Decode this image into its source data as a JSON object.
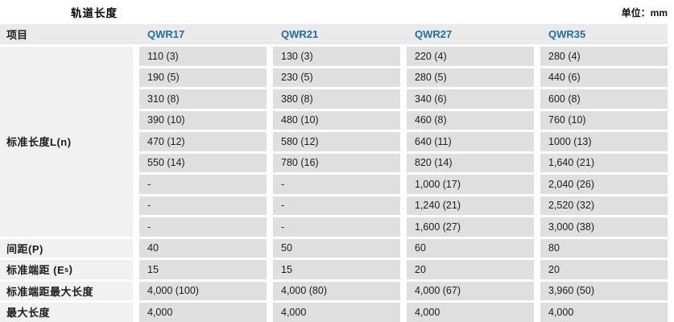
{
  "title": "轨道长度",
  "unit": "单位：mm",
  "colors": {
    "accent_blue": "#1d6fa5",
    "header_bg": "#eaeaea",
    "data_cell_bg": "#dfdfdf",
    "label_cell_bg": "#f1f1f1"
  },
  "table": {
    "columns": [
      "项目",
      "QWR17",
      "QWR21",
      "QWR27",
      "QWR35"
    ],
    "standard_length": {
      "label": "标准长度L(n)",
      "rows": [
        [
          "110 (3)",
          "130 (3)",
          "220 (4)",
          "280 (4)"
        ],
        [
          "190 (5)",
          "230 (5)",
          "280 (5)",
          "440 (6)"
        ],
        [
          "310 (8)",
          "380 (8)",
          "340 (6)",
          "600 (8)"
        ],
        [
          "390 (10)",
          "480 (10)",
          "460 (8)",
          "760 (10)"
        ],
        [
          "470 (12)",
          "580 (12)",
          "640 (11)",
          "1000 (13)"
        ],
        [
          "550 (14)",
          "780 (16)",
          "820 (14)",
          "1,640 (21)"
        ],
        [
          "-",
          "-",
          "1,000 (17)",
          "2,040 (26)"
        ],
        [
          "-",
          "-",
          "1,240 (21)",
          "2,520 (32)"
        ],
        [
          "-",
          "-",
          "1,600 (27)",
          "3,000 (38)"
        ]
      ]
    },
    "bottom_rows": [
      {
        "label": "间距(P)",
        "values": [
          "40",
          "50",
          "60",
          "80"
        ]
      },
      {
        "label": "标准端距 (E?)",
        "label_prefix": "标准端距 (E",
        "label_sub": "s",
        "label_suffix": ")",
        "values": [
          "15",
          "15",
          "20",
          "20"
        ]
      },
      {
        "label": "标准端距最大长度",
        "values": [
          "4,000 (100)",
          "4,000 (80)",
          "4,000 (67)",
          "3,960 (50)"
        ]
      },
      {
        "label": "最大长度",
        "values": [
          "4,000",
          "4,000",
          "4,000",
          "4,000"
        ]
      }
    ]
  }
}
